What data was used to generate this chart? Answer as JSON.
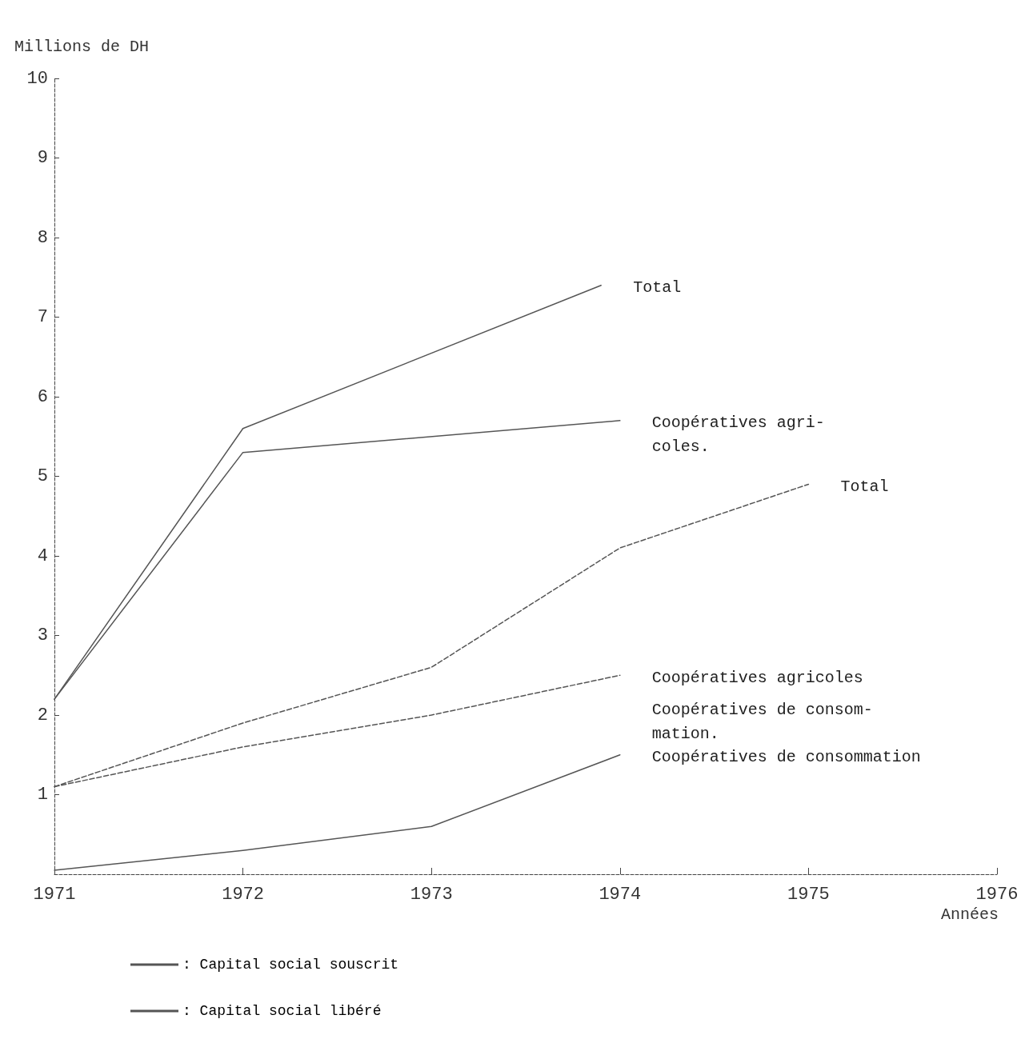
{
  "chart_data": {
    "type": "line",
    "ylabel": "Millions de DH",
    "xlabel": "Années",
    "xlim": [
      1971,
      1976
    ],
    "xticks": [
      1971,
      1972,
      1973,
      1974,
      1975,
      1976
    ],
    "ylim": [
      0,
      10
    ],
    "yticks": [
      1,
      2,
      3,
      4,
      5,
      6,
      7,
      8,
      9,
      10
    ],
    "grid": false,
    "legend": "bottom left",
    "marker": "none",
    "series": [
      {
        "name": ": Capital social souscrit",
        "color": "#555555",
        "line_style": "solid",
        "x": [
          1971,
          1972,
          1973.9
        ],
        "values": [
          2.2,
          5.6,
          7.4
        ]
      },
      {
        "color": "#555555",
        "line_style": "solid",
        "x": [
          1971,
          1972,
          1974
        ],
        "values": [
          2.2,
          5.3,
          5.7
        ]
      },
      {
        "color": "#555555",
        "line_style": "solid",
        "x": [
          1971,
          1972,
          1973,
          1974
        ],
        "values": [
          0.05,
          0.3,
          0.6,
          1.5
        ]
      },
      {
        "name": ": Capital social libéré",
        "color": "#555555",
        "line_style": "dashed",
        "x": [
          1971,
          1972,
          1973,
          1974,
          1975
        ],
        "values": [
          1.1,
          1.9,
          2.6,
          4.1,
          4.9
        ]
      },
      {
        "color": "#555555",
        "line_style": "dashed",
        "x": [
          1971,
          1972,
          1973,
          1974
        ],
        "values": [
          1.1,
          1.6,
          2.0,
          2.5
        ]
      }
    ],
    "annotations": [
      {
        "text": "Total",
        "x": 1973.9,
        "y": 7.4
      },
      {
        "text": "Coopératives agri-\ncoles.",
        "x": 1974,
        "y": 5.7
      },
      {
        "text": "Total",
        "x": 1975,
        "y": 4.9
      },
      {
        "text": "Coopératives agricoles",
        "x": 1974,
        "y": 2.5
      },
      {
        "text": "Coopératives de consom-\nmation.",
        "x": 1974,
        "y": 2.5
      },
      {
        "text": "Coopératives de consommation",
        "x": 1974,
        "y": 1.5
      }
    ]
  }
}
